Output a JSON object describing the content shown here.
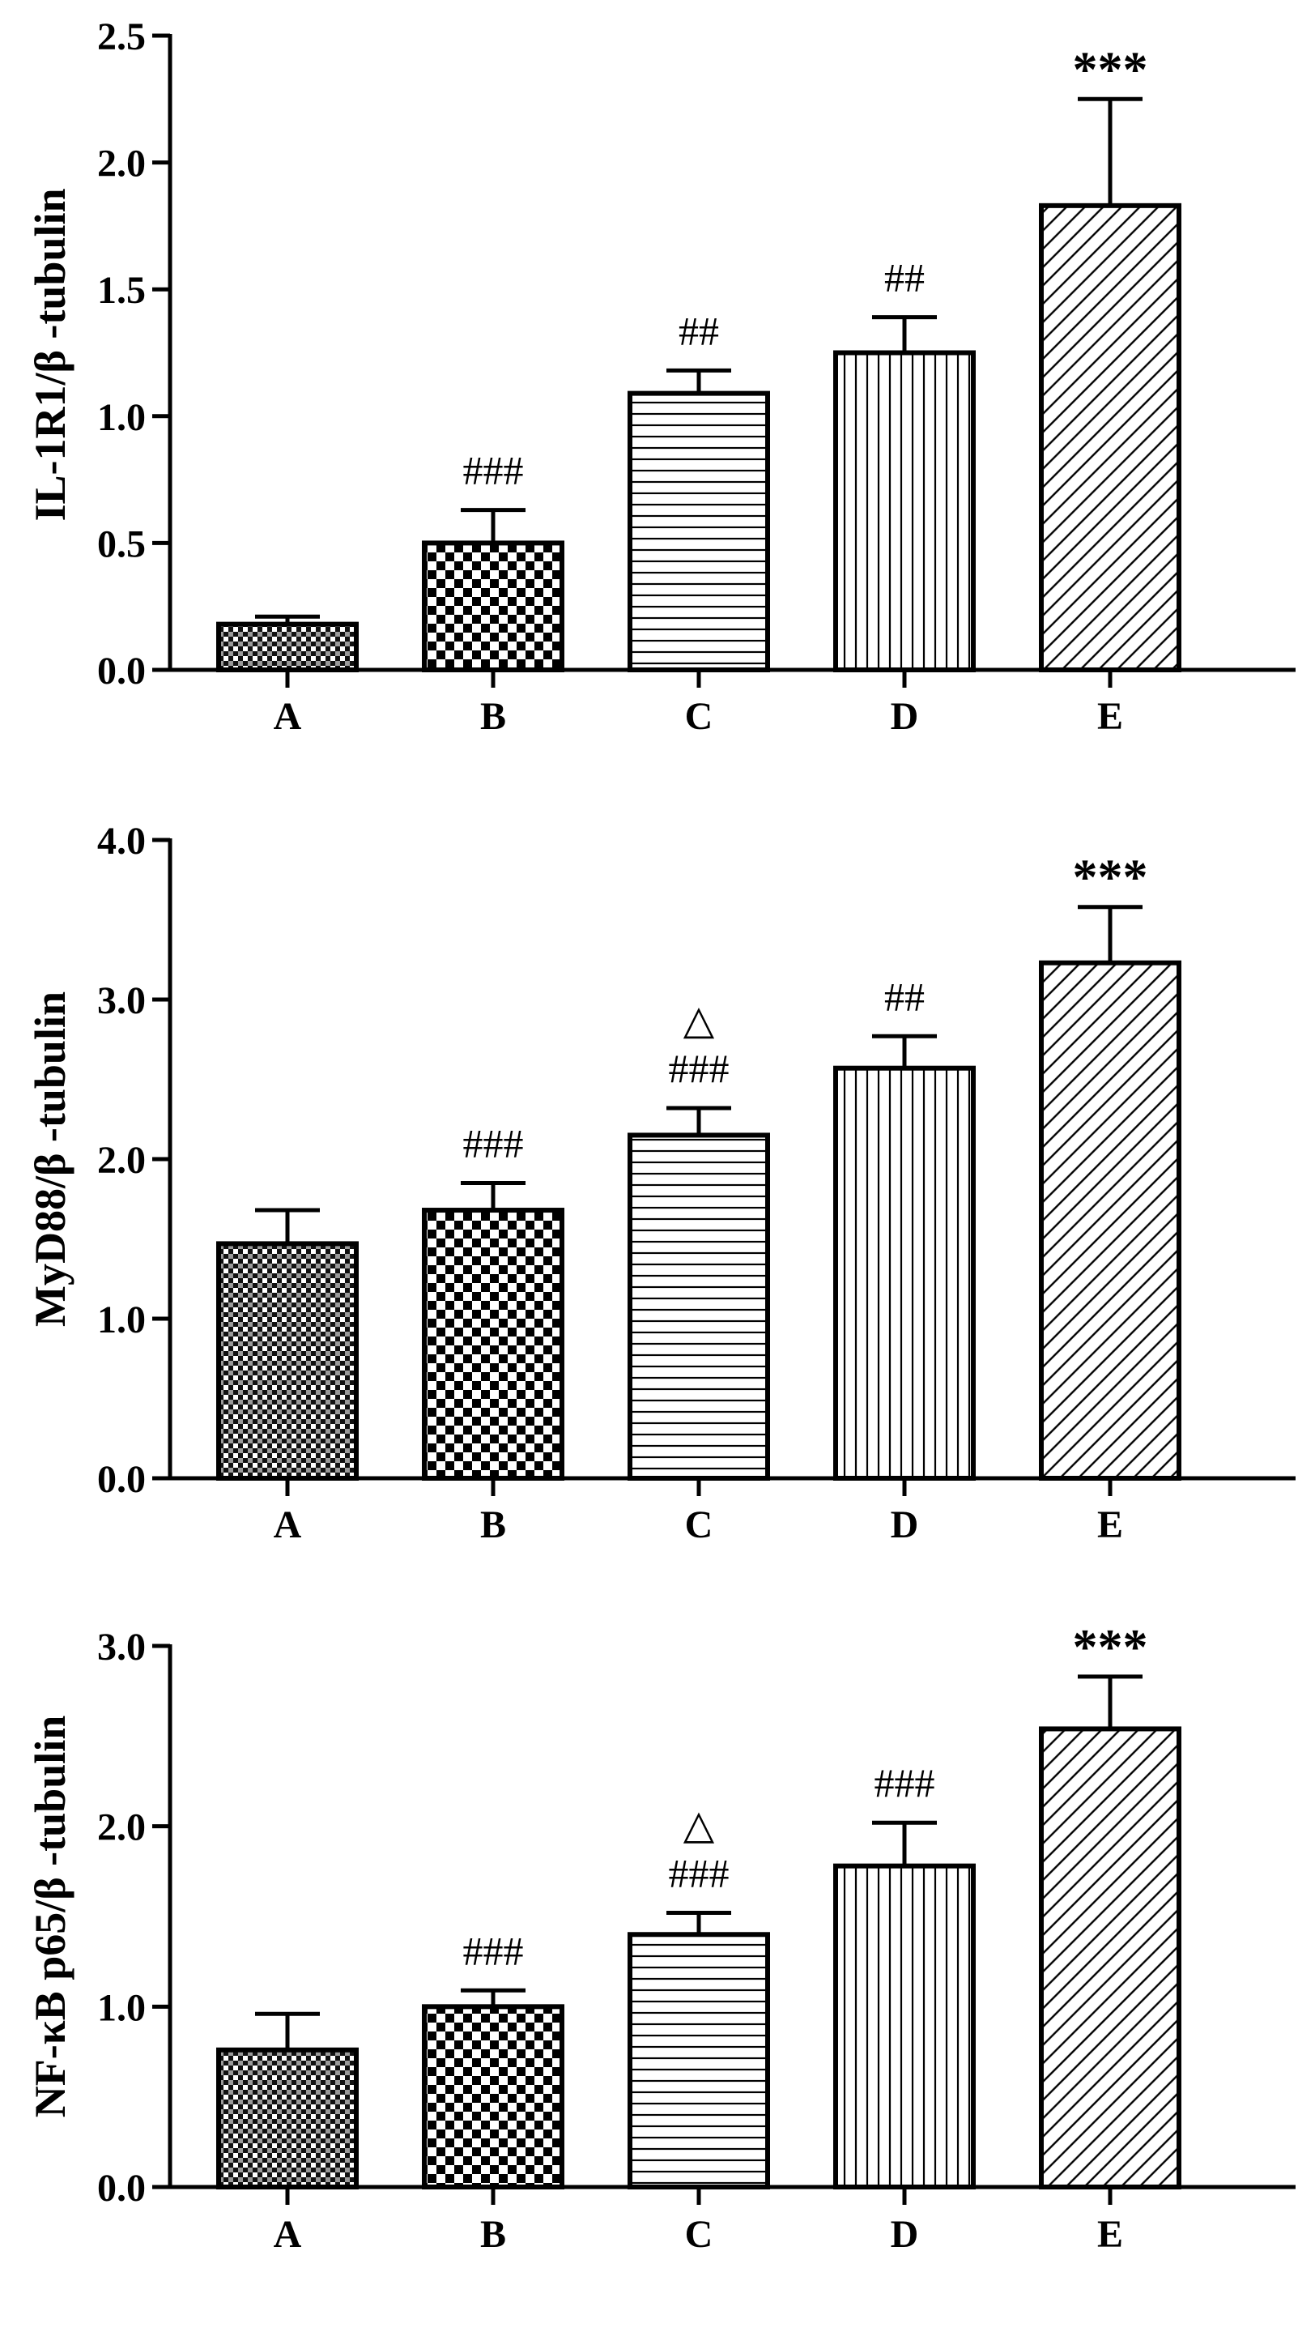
{
  "chart_data": [
    {
      "type": "bar",
      "title": "",
      "xlabel": "",
      "ylabel": "IL-1R1/β -tubulin",
      "categories": [
        "A",
        "B",
        "C",
        "D",
        "E"
      ],
      "values": [
        0.18,
        0.5,
        1.09,
        1.25,
        1.83
      ],
      "errors": [
        0.03,
        0.13,
        0.09,
        0.14,
        0.42
      ],
      "annotations": [
        "",
        "###",
        "##",
        "##",
        "***"
      ],
      "ylim": [
        0,
        2.5
      ],
      "yticks": [
        0.0,
        0.5,
        1.0,
        1.5,
        2.0,
        2.5
      ],
      "ytick_labels": [
        "0.0",
        "0.5",
        "1.0",
        "1.5",
        "2.0",
        "2.5"
      ],
      "patterns": [
        "fine-check",
        "checker",
        "horizontal",
        "vertical",
        "diagonal"
      ],
      "grid": false,
      "legend": "none"
    },
    {
      "type": "bar",
      "title": "",
      "xlabel": "",
      "ylabel": "MyD88/β -tubulin",
      "categories": [
        "A",
        "B",
        "C",
        "D",
        "E"
      ],
      "values": [
        1.47,
        1.68,
        2.15,
        2.57,
        3.23
      ],
      "errors": [
        0.21,
        0.17,
        0.17,
        0.2,
        0.35
      ],
      "annotations": [
        "",
        "###",
        "###",
        "##",
        "***"
      ],
      "annotations_top": [
        "",
        "",
        "△",
        "",
        ""
      ],
      "ylim": [
        0,
        4.0
      ],
      "yticks": [
        0.0,
        1.0,
        2.0,
        3.0,
        4.0
      ],
      "ytick_labels": [
        "0.0",
        "1.0",
        "2.0",
        "3.0",
        "4.0"
      ],
      "patterns": [
        "fine-check",
        "checker",
        "horizontal",
        "vertical",
        "diagonal"
      ],
      "grid": false,
      "legend": "none"
    },
    {
      "type": "bar",
      "title": "",
      "xlabel": "",
      "ylabel": "NF-κB p65/β -tubulin",
      "categories": [
        "A",
        "B",
        "C",
        "D",
        "E"
      ],
      "values": [
        0.76,
        1.0,
        1.4,
        1.78,
        2.54
      ],
      "errors": [
        0.2,
        0.09,
        0.12,
        0.24,
        0.29
      ],
      "annotations": [
        "",
        "###",
        "###",
        "###",
        "***"
      ],
      "annotations_top": [
        "",
        "",
        "△",
        "",
        ""
      ],
      "ylim": [
        0,
        3.0
      ],
      "yticks": [
        0.0,
        1.0,
        2.0,
        3.0
      ],
      "ytick_labels": [
        "0.0",
        "1.0",
        "2.0",
        "3.0"
      ],
      "patterns": [
        "fine-check",
        "checker",
        "horizontal",
        "vertical",
        "diagonal"
      ],
      "grid": false,
      "legend": "none"
    }
  ],
  "colors": {
    "ink": "#000000",
    "background": "#ffffff"
  }
}
